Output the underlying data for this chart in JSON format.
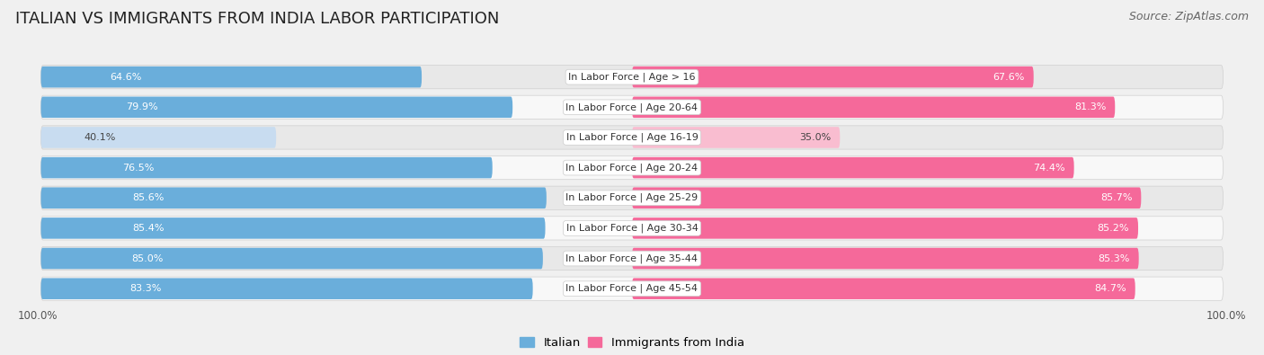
{
  "title": "ITALIAN VS IMMIGRANTS FROM INDIA LABOR PARTICIPATION",
  "source": "Source: ZipAtlas.com",
  "categories": [
    "In Labor Force | Age > 16",
    "In Labor Force | Age 20-64",
    "In Labor Force | Age 16-19",
    "In Labor Force | Age 20-24",
    "In Labor Force | Age 25-29",
    "In Labor Force | Age 30-34",
    "In Labor Force | Age 35-44",
    "In Labor Force | Age 45-54"
  ],
  "italian_values": [
    64.6,
    79.9,
    40.1,
    76.5,
    85.6,
    85.4,
    85.0,
    83.3
  ],
  "india_values": [
    67.6,
    81.3,
    35.0,
    74.4,
    85.7,
    85.2,
    85.3,
    84.7
  ],
  "italian_color_full": "#6aaedb",
  "italian_color_light": "#c8dcf0",
  "india_color_full": "#f5699a",
  "india_color_light": "#f9bdd0",
  "background_color": "#f0f0f0",
  "row_bg_odd": "#e8e8e8",
  "row_bg_even": "#f8f8f8",
  "row_border_color": "#d0d0d0",
  "label_fontsize": 8.0,
  "value_fontsize": 8.0,
  "title_fontsize": 13,
  "source_fontsize": 9,
  "legend_fontsize": 9.5,
  "axis_label_fontsize": 8.5,
  "max_val": 100.0,
  "threshold": 50
}
